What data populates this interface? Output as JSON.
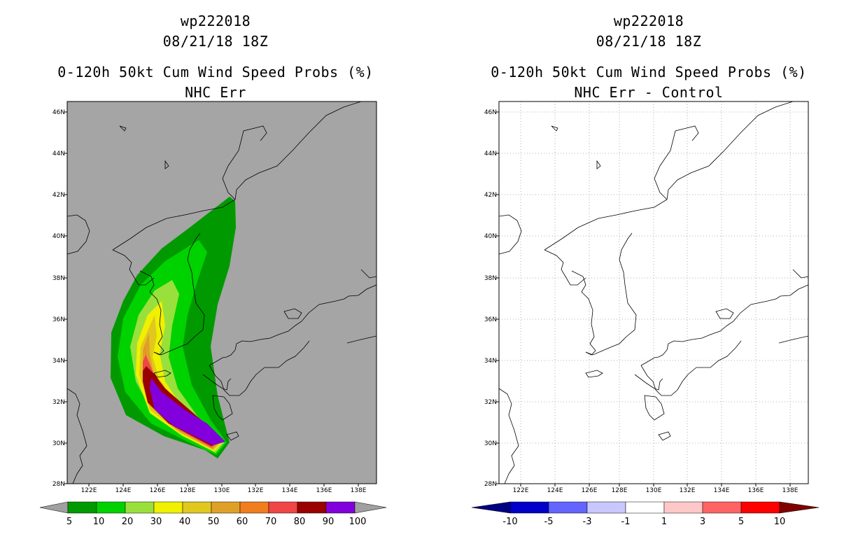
{
  "left_panel": {
    "storm_id": "wp222018",
    "datetime": "08/21/18 18Z",
    "product": "0-120h 50kt Cum Wind Speed Probs (%)",
    "subtitle": "NHC Err",
    "lat_labels": [
      "46N",
      "44N",
      "42N",
      "40N",
      "38N",
      "36N",
      "34N",
      "32N",
      "30N",
      "28N"
    ],
    "lon_labels": [
      "122E",
      "124E",
      "126E",
      "128E",
      "130E",
      "132E",
      "134E",
      "136E",
      "138E"
    ],
    "colorbar": {
      "labels": [
        "5",
        "10",
        "20",
        "30",
        "40",
        "50",
        "60",
        "70",
        "80",
        "90",
        "100"
      ],
      "colors": [
        "#009a00",
        "#00d200",
        "#9ae03c",
        "#f0f000",
        "#e0c81e",
        "#e0a028",
        "#f07d1e",
        "#f04646",
        "#9b0000",
        "#8200dc"
      ],
      "end_color": "#a0a0a0"
    },
    "colors": {
      "background": "#a5a5a5"
    }
  },
  "right_panel": {
    "storm_id": "wp222018",
    "datetime": "08/21/18 18Z",
    "product": "0-120h 50kt Cum Wind Speed Probs (%)",
    "subtitle": "NHC Err - Control",
    "lat_labels": [
      "46N",
      "44N",
      "42N",
      "40N",
      "38N",
      "36N",
      "34N",
      "32N",
      "30N",
      "28N"
    ],
    "lon_labels": [
      "122E",
      "124E",
      "126E",
      "128E",
      "130E",
      "132E",
      "134E",
      "136E",
      "138E"
    ],
    "colorbar": {
      "labels": [
        "-10",
        "-5",
        "-3",
        "-1",
        "1",
        "3",
        "5",
        "10"
      ],
      "colors": [
        "#0000c8",
        "#6464ff",
        "#c8c8ff",
        "#ffffff",
        "#ffc8c8",
        "#ff6464",
        "#ff0000"
      ],
      "end_left": "#000080",
      "end_right": "#800000"
    },
    "colors": {
      "background": "#ffffff"
    }
  }
}
